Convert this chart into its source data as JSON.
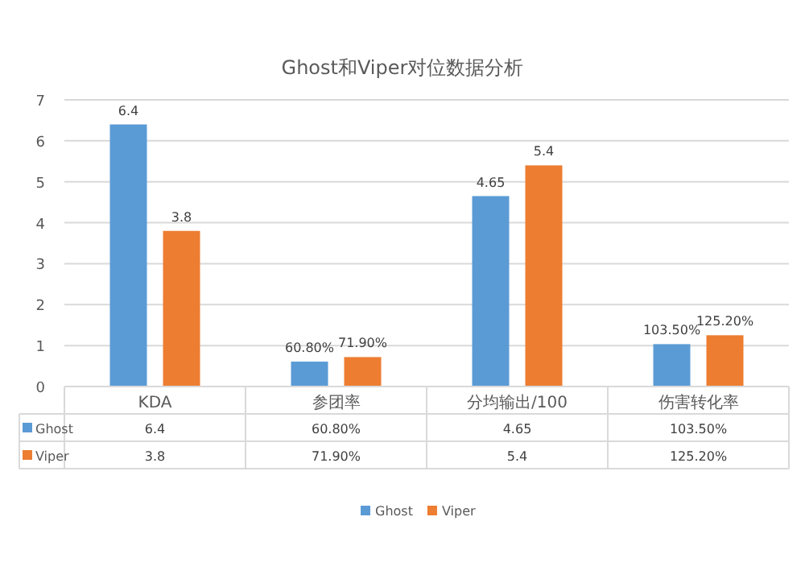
{
  "chart_data": {
    "type": "bar",
    "title": "Ghost和Viper对位数据分析",
    "categories": [
      "KDA",
      "参团率",
      "分均输出/100",
      "伤害转化率"
    ],
    "series": [
      {
        "name": "Ghost",
        "color": "#5b9bd5",
        "values": [
          6.4,
          0.608,
          4.65,
          1.035
        ],
        "value_labels": [
          "6.4",
          "60.80%",
          "4.65",
          "103.50%"
        ]
      },
      {
        "name": "Viper",
        "color": "#ed7d31",
        "values": [
          3.8,
          0.719,
          5.4,
          1.252
        ],
        "value_labels": [
          "3.8",
          "71.90%",
          "5.4",
          "125.20%"
        ]
      }
    ],
    "ylim": [
      0,
      7
    ],
    "yticks": [
      0,
      1,
      2,
      3,
      4,
      5,
      6,
      7
    ],
    "grid": "y",
    "legend": "bottom"
  }
}
